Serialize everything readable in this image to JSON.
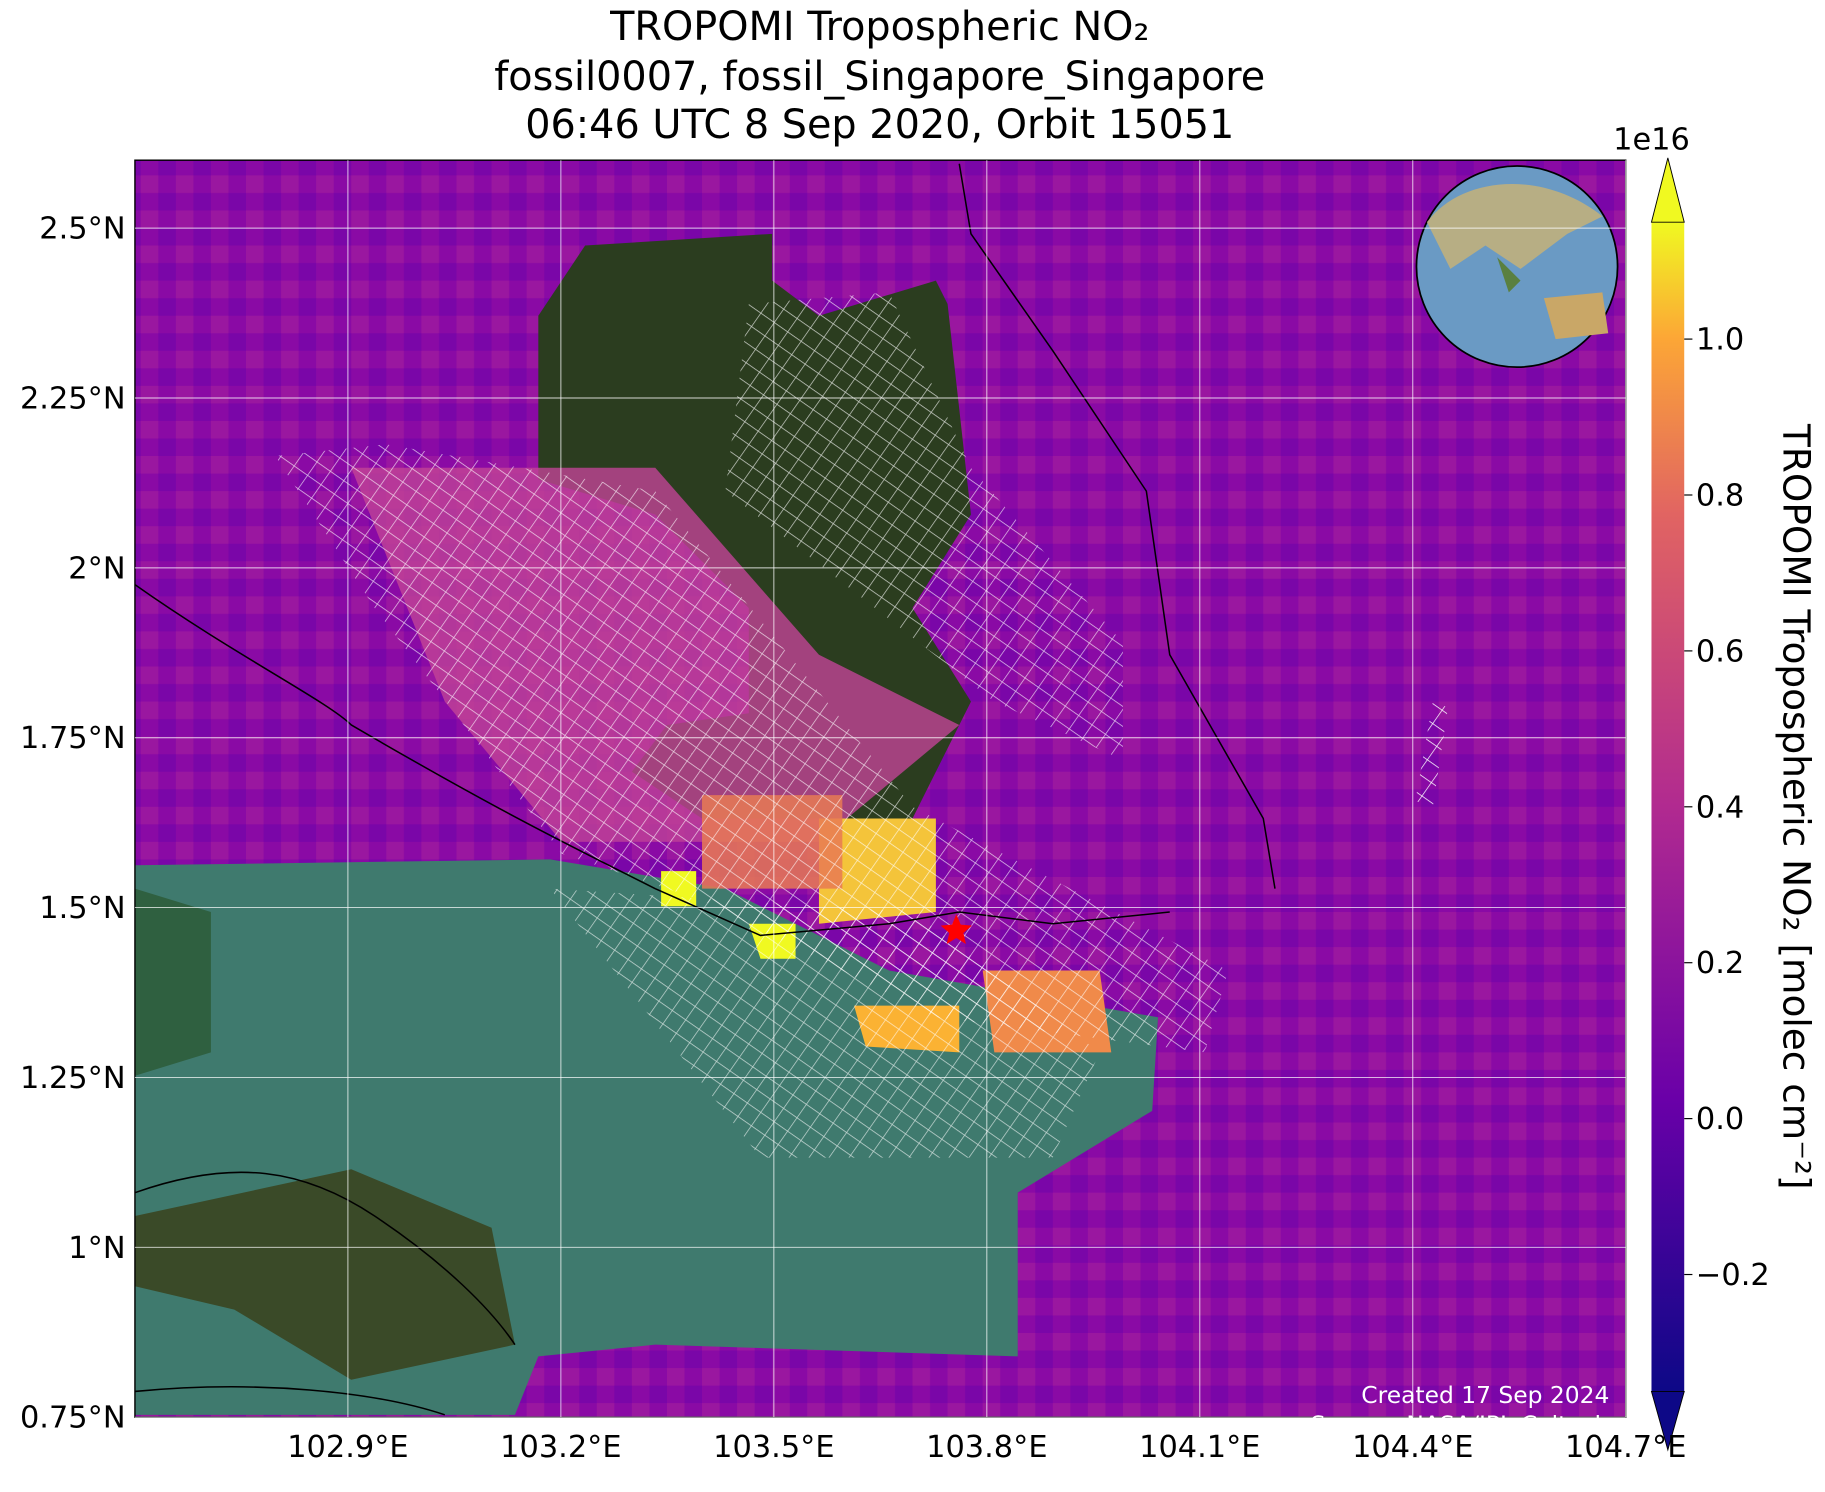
{
  "chart_data": {
    "type": "map",
    "title": [
      "TROPOMI Tropospheric NO₂",
      "fossil0007, fossil_Singapore_Singapore",
      "06:46 UTC 8 Sep 2020, Orbit 15051"
    ],
    "xlim": [
      102.6,
      104.7
    ],
    "ylim": [
      0.75,
      2.6
    ],
    "xticks": [
      {
        "value": 102.9,
        "label": "102.9°E"
      },
      {
        "value": 103.2,
        "label": "103.2°E"
      },
      {
        "value": 103.5,
        "label": "103.5°E"
      },
      {
        "value": 103.8,
        "label": "103.8°E"
      },
      {
        "value": 104.1,
        "label": "104.1°E"
      },
      {
        "value": 104.4,
        "label": "104.4°E"
      },
      {
        "value": 104.7,
        "label": "104.7°E"
      }
    ],
    "yticks": [
      {
        "value": 0.75,
        "label": "0.75°N"
      },
      {
        "value": 1.0,
        "label": "1°N"
      },
      {
        "value": 1.25,
        "label": "1.25°N"
      },
      {
        "value": 1.5,
        "label": "1.5°N"
      },
      {
        "value": 1.75,
        "label": "1.75°N"
      },
      {
        "value": 2.0,
        "label": "2°N"
      },
      {
        "value": 2.25,
        "label": "2.25°N"
      },
      {
        "value": 2.5,
        "label": "2.5°N"
      }
    ],
    "grid": true,
    "marker": {
      "lon": 103.757,
      "lat": 1.466,
      "color": "#ff0000"
    },
    "colorbar": {
      "label": "TROPOMI Tropospheric NO₂ [molec cm⁻²]",
      "offset": "1e16",
      "clim": [
        -0.35,
        1.15
      ],
      "ticks": [
        {
          "value": -0.2,
          "label": "−0.2"
        },
        {
          "value": 0.0,
          "label": "0.0"
        },
        {
          "value": 0.2,
          "label": "0.2"
        },
        {
          "value": 0.4,
          "label": "0.4"
        },
        {
          "value": 0.6,
          "label": "0.6"
        },
        {
          "value": 0.8,
          "label": "0.8"
        },
        {
          "value": 1.0,
          "label": "1.0"
        }
      ]
    },
    "footnotes": [
      "Created 17 Sep 2024",
      "Source: NASA/JPL-Caltech"
    ]
  }
}
